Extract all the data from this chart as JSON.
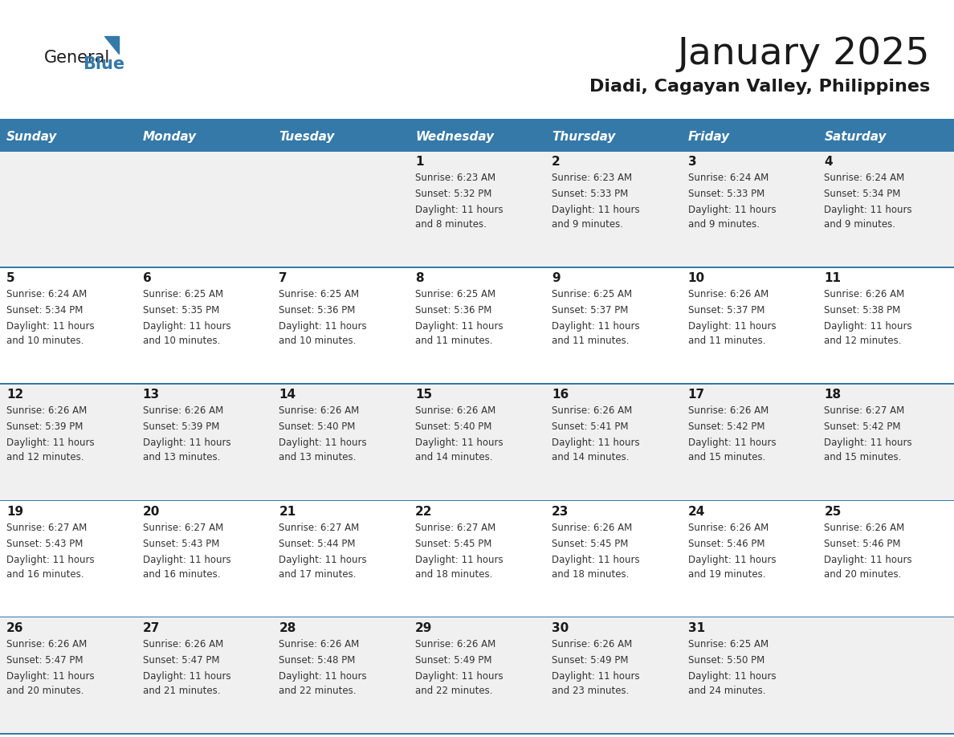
{
  "title": "January 2025",
  "subtitle": "Diadi, Cagayan Valley, Philippines",
  "days_of_week": [
    "Sunday",
    "Monday",
    "Tuesday",
    "Wednesday",
    "Thursday",
    "Friday",
    "Saturday"
  ],
  "header_bg": "#3579a8",
  "header_text": "#ffffff",
  "row_bg_odd": "#f0f0f0",
  "row_bg_even": "#ffffff",
  "cell_border": "#3579a8",
  "day_number_color": "#1a1a1a",
  "text_color": "#333333",
  "background": "#ffffff",
  "calendar_data": [
    [
      null,
      null,
      null,
      {
        "day": 1,
        "sunrise": "6:23 AM",
        "sunset": "5:32 PM",
        "daylight": "11 hours",
        "daylight2": "and 8 minutes."
      },
      {
        "day": 2,
        "sunrise": "6:23 AM",
        "sunset": "5:33 PM",
        "daylight": "11 hours",
        "daylight2": "and 9 minutes."
      },
      {
        "day": 3,
        "sunrise": "6:24 AM",
        "sunset": "5:33 PM",
        "daylight": "11 hours",
        "daylight2": "and 9 minutes."
      },
      {
        "day": 4,
        "sunrise": "6:24 AM",
        "sunset": "5:34 PM",
        "daylight": "11 hours",
        "daylight2": "and 9 minutes."
      }
    ],
    [
      {
        "day": 5,
        "sunrise": "6:24 AM",
        "sunset": "5:34 PM",
        "daylight": "11 hours",
        "daylight2": "and 10 minutes."
      },
      {
        "day": 6,
        "sunrise": "6:25 AM",
        "sunset": "5:35 PM",
        "daylight": "11 hours",
        "daylight2": "and 10 minutes."
      },
      {
        "day": 7,
        "sunrise": "6:25 AM",
        "sunset": "5:36 PM",
        "daylight": "11 hours",
        "daylight2": "and 10 minutes."
      },
      {
        "day": 8,
        "sunrise": "6:25 AM",
        "sunset": "5:36 PM",
        "daylight": "11 hours",
        "daylight2": "and 11 minutes."
      },
      {
        "day": 9,
        "sunrise": "6:25 AM",
        "sunset": "5:37 PM",
        "daylight": "11 hours",
        "daylight2": "and 11 minutes."
      },
      {
        "day": 10,
        "sunrise": "6:26 AM",
        "sunset": "5:37 PM",
        "daylight": "11 hours",
        "daylight2": "and 11 minutes."
      },
      {
        "day": 11,
        "sunrise": "6:26 AM",
        "sunset": "5:38 PM",
        "daylight": "11 hours",
        "daylight2": "and 12 minutes."
      }
    ],
    [
      {
        "day": 12,
        "sunrise": "6:26 AM",
        "sunset": "5:39 PM",
        "daylight": "11 hours",
        "daylight2": "and 12 minutes."
      },
      {
        "day": 13,
        "sunrise": "6:26 AM",
        "sunset": "5:39 PM",
        "daylight": "11 hours",
        "daylight2": "and 13 minutes."
      },
      {
        "day": 14,
        "sunrise": "6:26 AM",
        "sunset": "5:40 PM",
        "daylight": "11 hours",
        "daylight2": "and 13 minutes."
      },
      {
        "day": 15,
        "sunrise": "6:26 AM",
        "sunset": "5:40 PM",
        "daylight": "11 hours",
        "daylight2": "and 14 minutes."
      },
      {
        "day": 16,
        "sunrise": "6:26 AM",
        "sunset": "5:41 PM",
        "daylight": "11 hours",
        "daylight2": "and 14 minutes."
      },
      {
        "day": 17,
        "sunrise": "6:26 AM",
        "sunset": "5:42 PM",
        "daylight": "11 hours",
        "daylight2": "and 15 minutes."
      },
      {
        "day": 18,
        "sunrise": "6:27 AM",
        "sunset": "5:42 PM",
        "daylight": "11 hours",
        "daylight2": "and 15 minutes."
      }
    ],
    [
      {
        "day": 19,
        "sunrise": "6:27 AM",
        "sunset": "5:43 PM",
        "daylight": "11 hours",
        "daylight2": "and 16 minutes."
      },
      {
        "day": 20,
        "sunrise": "6:27 AM",
        "sunset": "5:43 PM",
        "daylight": "11 hours",
        "daylight2": "and 16 minutes."
      },
      {
        "day": 21,
        "sunrise": "6:27 AM",
        "sunset": "5:44 PM",
        "daylight": "11 hours",
        "daylight2": "and 17 minutes."
      },
      {
        "day": 22,
        "sunrise": "6:27 AM",
        "sunset": "5:45 PM",
        "daylight": "11 hours",
        "daylight2": "and 18 minutes."
      },
      {
        "day": 23,
        "sunrise": "6:26 AM",
        "sunset": "5:45 PM",
        "daylight": "11 hours",
        "daylight2": "and 18 minutes."
      },
      {
        "day": 24,
        "sunrise": "6:26 AM",
        "sunset": "5:46 PM",
        "daylight": "11 hours",
        "daylight2": "and 19 minutes."
      },
      {
        "day": 25,
        "sunrise": "6:26 AM",
        "sunset": "5:46 PM",
        "daylight": "11 hours",
        "daylight2": "and 20 minutes."
      }
    ],
    [
      {
        "day": 26,
        "sunrise": "6:26 AM",
        "sunset": "5:47 PM",
        "daylight": "11 hours",
        "daylight2": "and 20 minutes."
      },
      {
        "day": 27,
        "sunrise": "6:26 AM",
        "sunset": "5:47 PM",
        "daylight": "11 hours",
        "daylight2": "and 21 minutes."
      },
      {
        "day": 28,
        "sunrise": "6:26 AM",
        "sunset": "5:48 PM",
        "daylight": "11 hours",
        "daylight2": "and 22 minutes."
      },
      {
        "day": 29,
        "sunrise": "6:26 AM",
        "sunset": "5:49 PM",
        "daylight": "11 hours",
        "daylight2": "and 22 minutes."
      },
      {
        "day": 30,
        "sunrise": "6:26 AM",
        "sunset": "5:49 PM",
        "daylight": "11 hours",
        "daylight2": "and 23 minutes."
      },
      {
        "day": 31,
        "sunrise": "6:25 AM",
        "sunset": "5:50 PM",
        "daylight": "11 hours",
        "daylight2": "and 24 minutes."
      },
      null
    ]
  ],
  "logo_text1": "General",
  "logo_text2": "Blue",
  "logo_color1": "#1a1a1a",
  "logo_color2": "#3579a8",
  "logo_triangle_color": "#3579a8"
}
